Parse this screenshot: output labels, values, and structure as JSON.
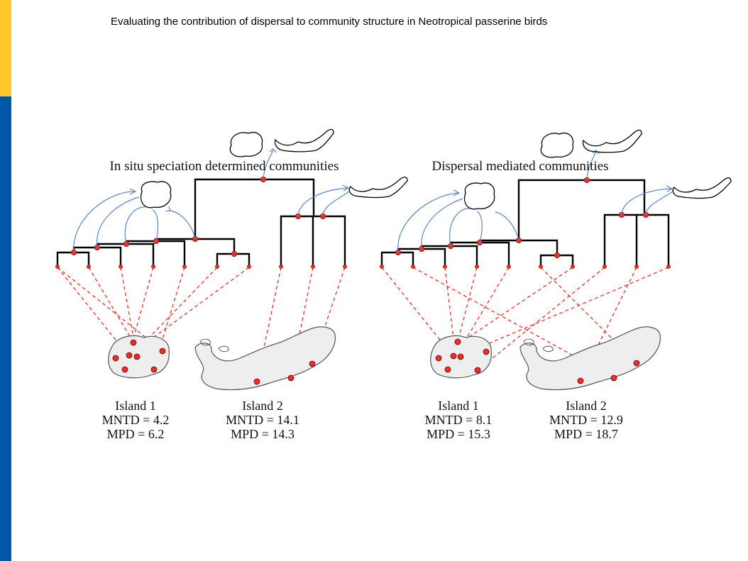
{
  "slide": {
    "title": "Evaluating the contribution of dispersal to community structure in Neotropical passerine birds",
    "accent_colors": {
      "yellow": "#ffc72c",
      "blue": "#0057a8",
      "lineage_red": "#e8302a",
      "dispersal_arrow": "#5b86c5",
      "island_fill": "#eeeeee"
    }
  },
  "panels": [
    {
      "title": "In situ speciation determined communities",
      "islands": [
        {
          "name": "Island 1",
          "mntd": "MNTD = 4.2",
          "mpd": "MPD = 6.2"
        },
        {
          "name": "Island 2",
          "mntd": "MNTD = 14.1",
          "mpd": "MPD = 14.3"
        }
      ]
    },
    {
      "title": "Dispersal mediated communities",
      "islands": [
        {
          "name": "Island 1",
          "mntd": "MNTD = 8.1",
          "mpd": "MPD = 15.3"
        },
        {
          "name": "Island 2",
          "mntd": "MNTD = 12.9",
          "mpd": "MPD = 18.7"
        }
      ]
    }
  ]
}
